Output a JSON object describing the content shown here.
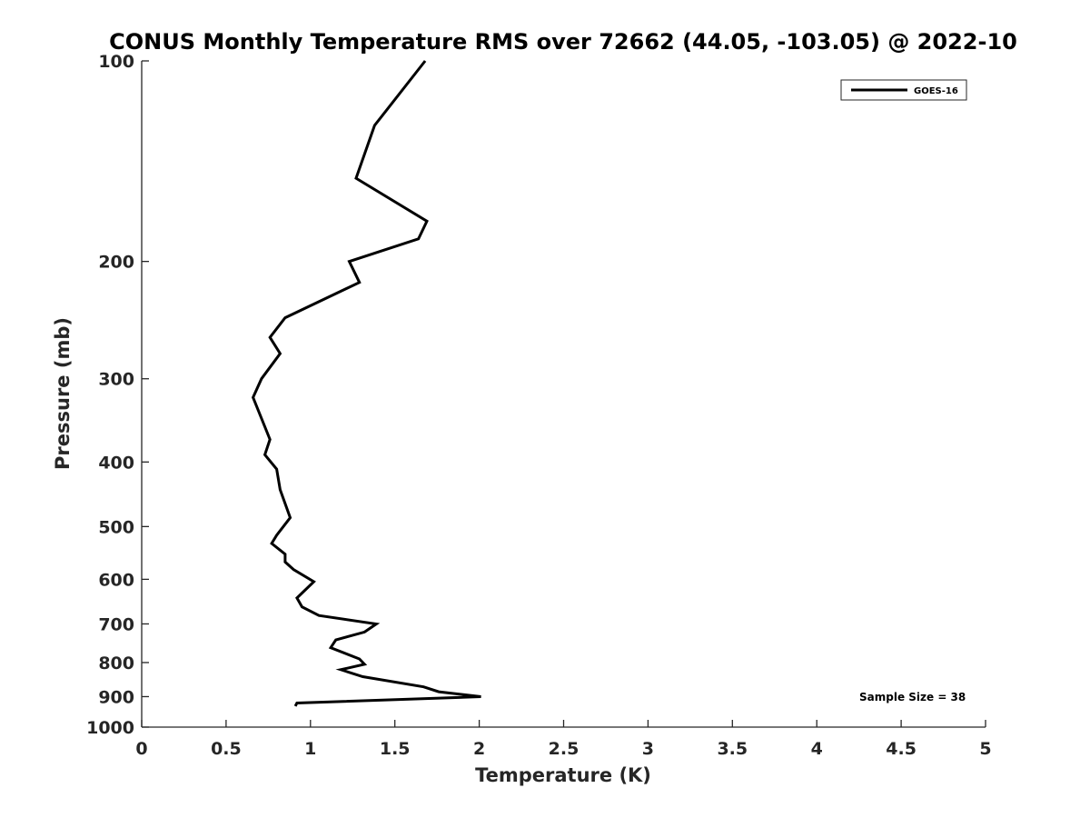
{
  "chart_data": {
    "type": "line",
    "title": "CONUS Monthly Temperature RMS over 72662 (44.05, -103.05) @ 2022-10",
    "xlabel": "Temperature (K)",
    "ylabel": "Pressure (mb)",
    "xlim": [
      0,
      5
    ],
    "ylim": [
      100,
      1000
    ],
    "y_scale": "log",
    "y_reversed": true,
    "grid": false,
    "legend_position": "top-right",
    "x_ticks": [
      0,
      0.5,
      1,
      1.5,
      2,
      2.5,
      3,
      3.5,
      4,
      4.5,
      5
    ],
    "x_tick_labels": [
      "0",
      "0.5",
      "1",
      "1.5",
      "2",
      "2.5",
      "3",
      "3.5",
      "4",
      "4.5",
      "5"
    ],
    "y_ticks": [
      100,
      200,
      300,
      400,
      500,
      600,
      700,
      800,
      900,
      1000
    ],
    "y_tick_labels": [
      "100",
      "200",
      "300",
      "400",
      "500",
      "600",
      "700",
      "800",
      "900",
      "1000"
    ],
    "annotation": "Sample Size = 38",
    "series": [
      {
        "name": "GOES-16",
        "color": "#000000",
        "points": [
          [
            1.68,
            100
          ],
          [
            1.38,
            125
          ],
          [
            1.27,
            150
          ],
          [
            1.69,
            174
          ],
          [
            1.64,
            185
          ],
          [
            1.23,
            200
          ],
          [
            1.29,
            215
          ],
          [
            0.85,
            243
          ],
          [
            0.76,
            260
          ],
          [
            0.82,
            275
          ],
          [
            0.71,
            300
          ],
          [
            0.66,
            320
          ],
          [
            0.76,
            370
          ],
          [
            0.73,
            390
          ],
          [
            0.8,
            410
          ],
          [
            0.82,
            440
          ],
          [
            0.88,
            485
          ],
          [
            0.8,
            515
          ],
          [
            0.77,
            530
          ],
          [
            0.85,
            550
          ],
          [
            0.85,
            565
          ],
          [
            0.9,
            580
          ],
          [
            1.02,
            605
          ],
          [
            0.92,
            640
          ],
          [
            0.95,
            660
          ],
          [
            1.05,
            680
          ],
          [
            1.39,
            700
          ],
          [
            1.32,
            720
          ],
          [
            1.15,
            740
          ],
          [
            1.12,
            760
          ],
          [
            1.29,
            790
          ],
          [
            1.32,
            805
          ],
          [
            1.18,
            820
          ],
          [
            1.31,
            840
          ],
          [
            1.67,
            870
          ],
          [
            1.76,
            885
          ],
          [
            2.01,
            900
          ],
          [
            0.92,
            920
          ],
          [
            0.91,
            930
          ]
        ]
      }
    ]
  }
}
